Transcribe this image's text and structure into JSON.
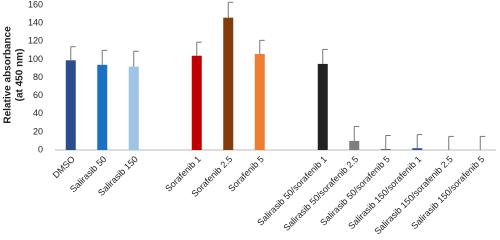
{
  "chart_data": {
    "type": "bar",
    "y_label_lines": [
      "Relative absorbance",
      "(at 450 nm)"
    ],
    "categories": [
      "DMSO",
      "Salirasib 50",
      "Salirasib 150",
      null,
      "Sorafenib 1",
      "Sorafenib 2.5",
      "Sorafenib 5",
      null,
      "Salirasib 50/sorafenib 1",
      "Salirasib 50/sorafenib 2.5",
      "Salirasib 50/sorafenib 5",
      "Salirasib 150/sorafenib 1",
      "Salirasib 150/sorafenib 2.5",
      "Salirasib 150/sorafenib 5"
    ],
    "values": [
      99,
      94,
      92,
      null,
      104,
      146,
      106,
      null,
      95,
      10,
      1,
      2,
      0,
      0
    ],
    "errors": [
      15,
      16,
      17,
      null,
      15,
      17,
      15,
      null,
      16,
      16,
      15,
      15,
      15,
      15
    ],
    "colors": [
      "#2a4d8f",
      "#1b72c5",
      "#9dc3e6",
      null,
      "#c00000",
      "#843c0c",
      "#ed7d31",
      null,
      "#222222",
      "#7f7f7f",
      "#595959",
      "#2e5597",
      "#595959",
      "#595959"
    ],
    "ylim": [
      0,
      160
    ],
    "yticks": [
      0,
      20,
      40,
      60,
      80,
      100,
      120,
      140,
      160
    ]
  }
}
